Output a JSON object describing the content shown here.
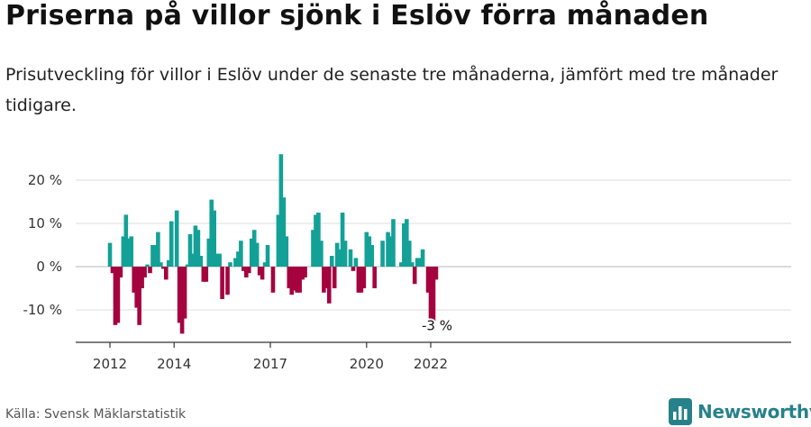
{
  "title": "Priserna på villor sjönk i Eslöv förra månaden",
  "subtitle": "Prisutveckling för villor i Eslöv under de senaste tre månaderna, jämfört med tre månader tidigare.",
  "source": "Källa: Svensk Mäklarstatistik",
  "brand": {
    "name": "Newsworthy",
    "icon": "newsworthy-bars-logo-icon"
  },
  "colors": {
    "positive": "#13a197",
    "negative": "#a5033f",
    "axis": "#333333",
    "grid": "#dddddd"
  },
  "chart_data": {
    "type": "bar",
    "title": "Priserna på villor sjönk i Eslöv förra månaden",
    "subtitle": "Prisutveckling för villor i Eslöv under de senaste tre månaderna, jämfört med tre månader tidigare.",
    "xlabel": "",
    "ylabel": "",
    "ylim": [
      -17.5,
      27
    ],
    "yticks": [
      {
        "value": 20,
        "label": "20 %"
      },
      {
        "value": 10,
        "label": "10 %"
      },
      {
        "value": 0,
        "label": "0 %"
      },
      {
        "value": -10,
        "label": "-10 %"
      }
    ],
    "xticks": [
      {
        "index": 0,
        "label": "2012"
      },
      {
        "index": 24,
        "label": "2014"
      },
      {
        "index": 60,
        "label": "2017"
      },
      {
        "index": 96,
        "label": "2020"
      },
      {
        "index": 120,
        "label": "2022"
      }
    ],
    "grid": true,
    "legend": "none",
    "annotation": {
      "index": 120,
      "label": "-3 %"
    },
    "values": [
      5.5,
      -1.5,
      -13.5,
      -13,
      -2.5,
      7,
      12,
      6.5,
      7,
      -6,
      -9.5,
      -13.5,
      -5,
      -2.5,
      0.5,
      -1.5,
      5,
      5,
      8,
      1,
      -0.5,
      -3,
      1.5,
      10.5,
      0,
      13,
      -13,
      -15.5,
      -12,
      0.5,
      7.5,
      3,
      9.5,
      8.5,
      2.5,
      -3.5,
      -3.5,
      6.5,
      15.5,
      13,
      3,
      3,
      -7.5,
      0,
      -6.5,
      1,
      0,
      2,
      3.5,
      6,
      -1,
      -2.5,
      -1.5,
      6.5,
      8.5,
      5.5,
      -2,
      -3,
      1,
      5,
      0,
      -6,
      0,
      12,
      26,
      16,
      7,
      -5,
      -6.5,
      -5.5,
      -6,
      -6,
      -3,
      -2.5,
      0,
      0,
      8.5,
      12,
      12.5,
      6,
      -6,
      -5,
      -8.5,
      2.5,
      -5,
      5.5,
      4,
      12.5,
      6,
      0,
      4,
      -1,
      2,
      -6,
      -6,
      -5,
      8,
      7,
      5,
      -5,
      0,
      0,
      6,
      0,
      8,
      7,
      11,
      0,
      0,
      1,
      10,
      11,
      6,
      1,
      -4,
      2,
      2,
      4,
      0,
      -6,
      -12,
      -13,
      -3
    ]
  }
}
